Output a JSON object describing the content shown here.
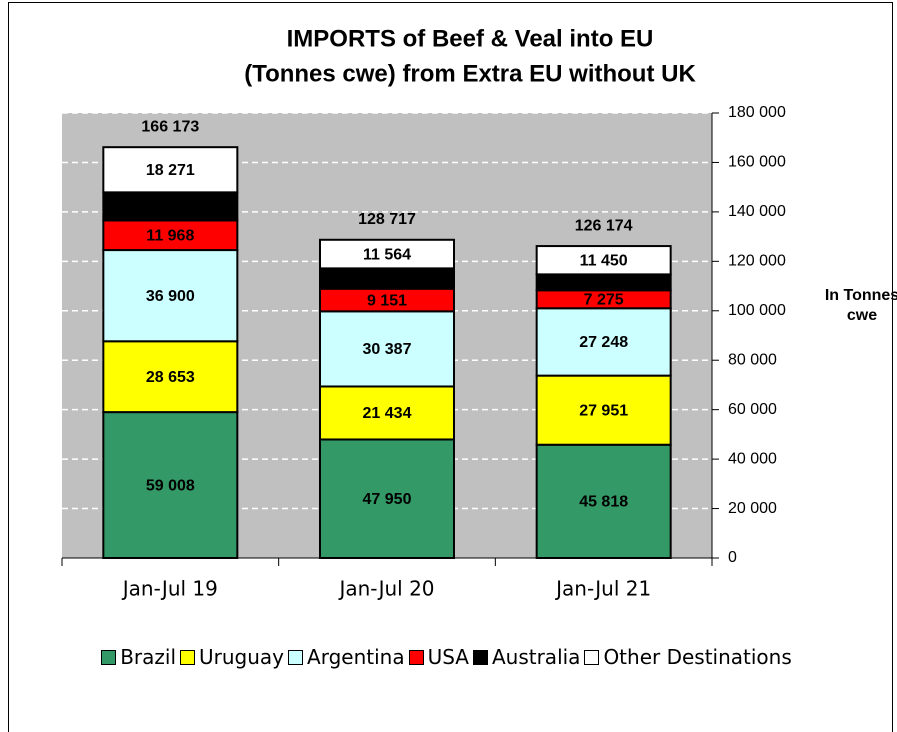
{
  "chart_data": {
    "type": "stacked_bar",
    "title": [
      "IMPORTS of Beef & Veal into EU",
      "(Tonnes cwe) from Extra EU without UK"
    ],
    "y_label": "In Tonnes cwe",
    "categories": [
      "Jan-Jul 19",
      "Jan-Jul 20",
      "Jan-Jul 21"
    ],
    "series": [
      {
        "name": "Brazil",
        "color": "#339966",
        "values": [
          59008,
          47950,
          45818
        ],
        "value_labels": [
          "59 008",
          "47 950",
          "45 818"
        ]
      },
      {
        "name": "Uruguay",
        "color": "#ffff00",
        "values": [
          28653,
          21434,
          27951
        ],
        "value_labels": [
          "28 653",
          "21 434",
          "27 951"
        ]
      },
      {
        "name": "Argentina",
        "color": "#ccffff",
        "values": [
          36900,
          30387,
          27248
        ],
        "value_labels": [
          "36 900",
          "30 387",
          "27 248"
        ]
      },
      {
        "name": "USA",
        "color": "#ff0000",
        "values": [
          11968,
          9151,
          7275
        ],
        "value_labels": [
          "11 968",
          "9 151",
          "7 275"
        ]
      },
      {
        "name": "Australia",
        "color": "#000000",
        "values": [
          11373,
          8231,
          6432
        ]
      },
      {
        "name": "Other Destinations",
        "color": "#ffffff",
        "values": [
          18271,
          11564,
          11450
        ],
        "value_labels": [
          "18 271",
          "11 564",
          "11 450"
        ]
      }
    ],
    "totals": [
      166173,
      128717,
      126174
    ],
    "total_labels": [
      "166 173",
      "128 717",
      "126 174"
    ],
    "ylim": [
      0,
      180000
    ],
    "yticks": [
      0,
      {
        "value": 20000,
        "label": "20 000"
      },
      {
        "value": 40000,
        "label": "40 000"
      },
      {
        "value": 60000,
        "label": "60 000"
      },
      {
        "value": 80000,
        "label": "80 000"
      },
      {
        "value": 100000,
        "label": "100 000"
      },
      {
        "value": 120000,
        "label": "120 000"
      },
      {
        "value": 140000,
        "label": "140 000"
      },
      {
        "value": 160000,
        "label": "160 000"
      },
      {
        "value": 180000,
        "label": "180 000"
      }
    ],
    "y_axis_side": "right",
    "grid": true,
    "plot_background": "#c0c0c0"
  }
}
